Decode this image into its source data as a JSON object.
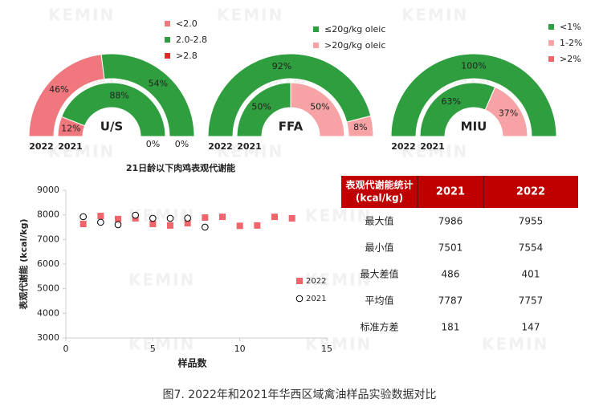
{
  "watermark": "KEMIN",
  "chart_data": [
    {
      "type": "gauge",
      "title": "U/S",
      "categories": [
        "<2.0",
        "2.0-2.8",
        ">2.8"
      ],
      "colors": [
        "#f0777d",
        "#2e9e3e",
        "#e8272a"
      ],
      "series": [
        {
          "name": "2022",
          "values": [
            46,
            54,
            0
          ],
          "value_labels": [
            "46%",
            "54%",
            "0%"
          ]
        },
        {
          "name": "2021",
          "values": [
            12,
            88,
            0
          ],
          "value_labels": [
            "12%",
            "88%",
            "0%"
          ]
        }
      ]
    },
    {
      "type": "gauge",
      "title": "FFA",
      "categories": [
        "≤20g/kg oleic",
        ">20g/kg oleic"
      ],
      "colors": [
        "#2e9e3e",
        "#f7a3a6"
      ],
      "series": [
        {
          "name": "2022",
          "values": [
            92,
            8
          ],
          "value_labels": [
            "92%",
            "8%"
          ]
        },
        {
          "name": "2021",
          "values": [
            50,
            50
          ],
          "value_labels": [
            "50%",
            "50%"
          ]
        }
      ]
    },
    {
      "type": "gauge",
      "title": "MIU",
      "categories": [
        "<1%",
        "1-2%",
        ">2%"
      ],
      "colors": [
        "#2e9e3e",
        "#f7a3a6",
        "#f0656b"
      ],
      "series": [
        {
          "name": "2022",
          "values": [
            100,
            null,
            null
          ],
          "value_labels": [
            "100%",
            null,
            null
          ]
        },
        {
          "name": "2021",
          "values": [
            63,
            37,
            null
          ],
          "value_labels": [
            "63%",
            "37%",
            null
          ]
        }
      ]
    },
    {
      "type": "scatter",
      "title": "21日龄以下肉鸡表观代谢能",
      "x_label": "样品数",
      "y_label": "表观代谢能 (kcal/kg)",
      "xlim": [
        0,
        15
      ],
      "xticks": [
        0,
        5,
        10,
        15
      ],
      "ylim": [
        3000,
        9000
      ],
      "yticks": [
        3000,
        4000,
        5000,
        6000,
        7000,
        8000,
        9000
      ],
      "legend": "right",
      "series": [
        {
          "name": "2022",
          "color": "#f0656b",
          "marker": "square",
          "x": [
            1,
            2,
            3,
            4,
            5,
            6,
            7,
            8,
            9,
            10,
            11,
            12,
            13
          ],
          "values": [
            7630,
            7955,
            7830,
            7860,
            7630,
            7570,
            7660,
            7890,
            7920,
            7554,
            7570,
            7920,
            7860
          ]
        },
        {
          "name": "2021",
          "color": "#000000",
          "marker": "circle",
          "x": [
            1,
            2,
            3,
            4,
            5,
            6,
            7,
            8
          ],
          "values": [
            7925,
            7700,
            7600,
            7986,
            7860,
            7860,
            7870,
            7501
          ]
        }
      ]
    }
  ],
  "table": {
    "header": [
      [
        "表观代谢能统计",
        "(kcal/kg)"
      ],
      "2021",
      "2022"
    ],
    "rows": [
      [
        "最大值",
        7986,
        7955
      ],
      [
        "最小值",
        7501,
        7554
      ],
      [
        "最大差值",
        486,
        401
      ],
      [
        "平均值",
        7787,
        7757
      ],
      [
        "标准方差",
        181,
        147
      ]
    ]
  },
  "caption": "图7. 2022年和2021年华西区域禽油样品实验数据对比"
}
